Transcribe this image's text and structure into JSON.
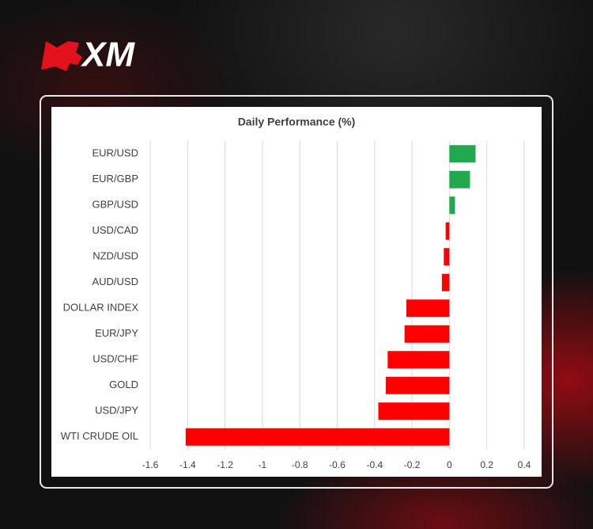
{
  "brand": "XM",
  "chart_data": {
    "type": "bar",
    "orientation": "horizontal",
    "title": "Daily Performance (%)",
    "categories": [
      "EUR/USD",
      "EUR/GBP",
      "GBP/USD",
      "USD/CAD",
      "NZD/USD",
      "AUD/USD",
      "DOLLAR INDEX",
      "EUR/JPY",
      "USD/CHF",
      "GOLD",
      "USD/JPY",
      "WTI CRUDE OIL"
    ],
    "values": [
      0.14,
      0.11,
      0.03,
      -0.02,
      -0.03,
      -0.04,
      -0.23,
      -0.24,
      -0.33,
      -0.34,
      -0.38,
      -1.41
    ],
    "positive_color": "#22a84e",
    "negative_color": "#ff0000",
    "xlim": [
      -1.6,
      0.4
    ],
    "xticks": [
      -1.6,
      -1.4,
      -1.2,
      -1,
      -0.8,
      -0.6,
      -0.4,
      -0.2,
      0,
      0.2,
      0.4
    ],
    "grid": true
  }
}
